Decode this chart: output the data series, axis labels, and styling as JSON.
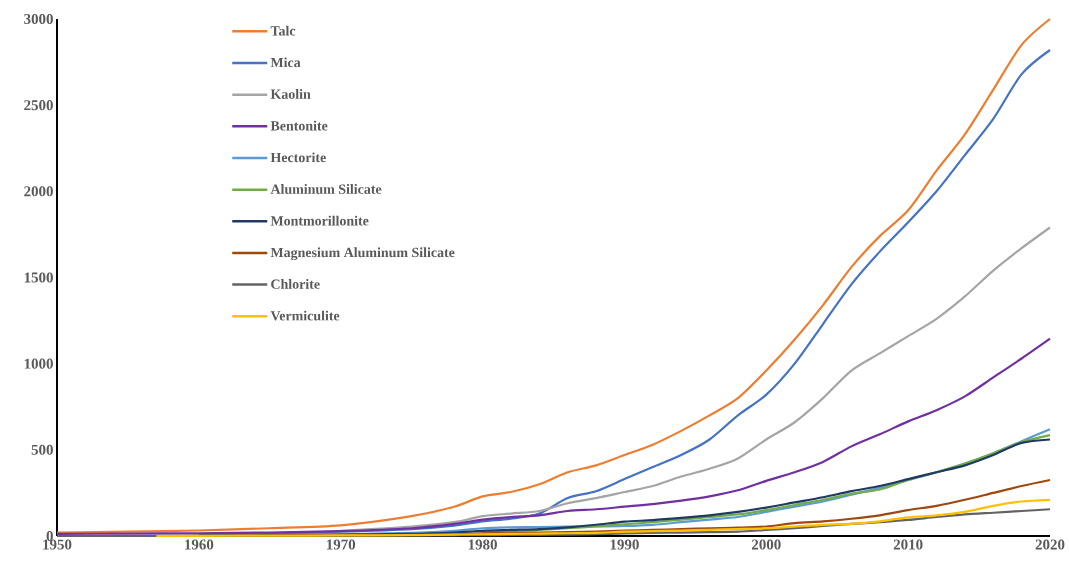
{
  "chart_data": {
    "type": "line",
    "x": [
      1950,
      1955,
      1960,
      1965,
      1970,
      1975,
      1978,
      1980,
      1982,
      1984,
      1986,
      1988,
      1990,
      1992,
      1994,
      1996,
      1998,
      2000,
      2002,
      2004,
      2006,
      2008,
      2010,
      2012,
      2014,
      2016,
      2018,
      2020
    ],
    "xlim": [
      1950,
      2020
    ],
    "xticks": [
      1950,
      1960,
      1970,
      1980,
      1990,
      2000,
      2010,
      2020
    ],
    "ylim": [
      0,
      3000
    ],
    "yticks": [
      0,
      500,
      1000,
      1500,
      2000,
      2500,
      3000
    ],
    "grid": false,
    "legend": "top left",
    "marker": "none",
    "line_style": "solid",
    "series": [
      {
        "name": "Talc",
        "color": "#ed7d31",
        "values": [
          20,
          25,
          32,
          45,
          62,
          115,
          170,
          230,
          255,
          300,
          370,
          410,
          470,
          530,
          610,
          700,
          800,
          960,
          1140,
          1340,
          1560,
          1740,
          1890,
          2120,
          2330,
          2590,
          2850,
          3000
        ]
      },
      {
        "name": "Mica",
        "color": "#4472c4",
        "values": [
          null,
          null,
          10,
          15,
          25,
          40,
          60,
          85,
          100,
          130,
          220,
          260,
          330,
          400,
          470,
          560,
          700,
          820,
          1000,
          1230,
          1460,
          1650,
          1820,
          2000,
          2210,
          2420,
          2680,
          2820
        ]
      },
      {
        "name": "Kaolin",
        "color": "#a5a5a5",
        "values": [
          null,
          null,
          null,
          null,
          30,
          55,
          80,
          115,
          130,
          145,
          190,
          220,
          255,
          290,
          345,
          390,
          450,
          560,
          660,
          800,
          960,
          1060,
          1160,
          1260,
          1390,
          1540,
          1670,
          1790
        ]
      },
      {
        "name": "Bentonite",
        "color": "#7030a0",
        "values": [
          12,
          14,
          16,
          20,
          28,
          45,
          70,
          95,
          110,
          120,
          145,
          155,
          170,
          185,
          205,
          230,
          265,
          320,
          370,
          430,
          520,
          590,
          665,
          730,
          810,
          920,
          1030,
          1145
        ]
      },
      {
        "name": "Hectorite",
        "color": "#5b9bd5",
        "values": [
          null,
          null,
          null,
          5,
          10,
          18,
          30,
          45,
          50,
          52,
          55,
          55,
          58,
          65,
          80,
          95,
          110,
          140,
          170,
          200,
          240,
          280,
          325,
          370,
          420,
          480,
          550,
          620
        ]
      },
      {
        "name": "Aluminum Silicate",
        "color": "#70ad47",
        "values": [
          null,
          null,
          null,
          null,
          null,
          null,
          null,
          25,
          30,
          35,
          45,
          55,
          68,
          80,
          95,
          110,
          125,
          150,
          180,
          210,
          245,
          270,
          325,
          370,
          420,
          480,
          545,
          585
        ]
      },
      {
        "name": "Montmorillonite",
        "color": "#203864",
        "values": [
          0,
          0,
          2,
          5,
          8,
          12,
          20,
          30,
          35,
          40,
          50,
          65,
          83,
          92,
          105,
          120,
          140,
          165,
          195,
          225,
          260,
          290,
          330,
          370,
          410,
          470,
          540,
          560
        ]
      },
      {
        "name": "Magnesium Aluminum Silicate",
        "color": "#9e480e",
        "values": [
          0,
          0,
          0,
          2,
          4,
          6,
          10,
          15,
          18,
          20,
          22,
          26,
          31,
          35,
          40,
          45,
          48,
          55,
          75,
          85,
          100,
          120,
          150,
          175,
          210,
          250,
          290,
          325
        ]
      },
      {
        "name": "Chlorite",
        "color": "#636363",
        "values": [
          0,
          0,
          0,
          0,
          2,
          3,
          4,
          5,
          6,
          7,
          8,
          10,
          15,
          18,
          20,
          22,
          25,
          35,
          45,
          58,
          70,
          80,
          93,
          110,
          125,
          135,
          145,
          155
        ]
      },
      {
        "name": "Vermiculite",
        "color": "#ffc000",
        "x": [
          1957,
          1960,
          1965,
          1970,
          1975,
          1978,
          1980,
          1982,
          1984,
          1986,
          1988,
          1990,
          1992,
          1994,
          1996,
          1998,
          2000,
          2002,
          2004,
          2006,
          2008,
          2010,
          2012,
          2014,
          2016,
          2018,
          2020
        ],
        "values": [
          0,
          1,
          2,
          3,
          5,
          8,
          10,
          12,
          14,
          16,
          18,
          25,
          28,
          32,
          36,
          40,
          45,
          55,
          65,
          70,
          85,
          108,
          120,
          140,
          175,
          200,
          210
        ]
      }
    ]
  }
}
